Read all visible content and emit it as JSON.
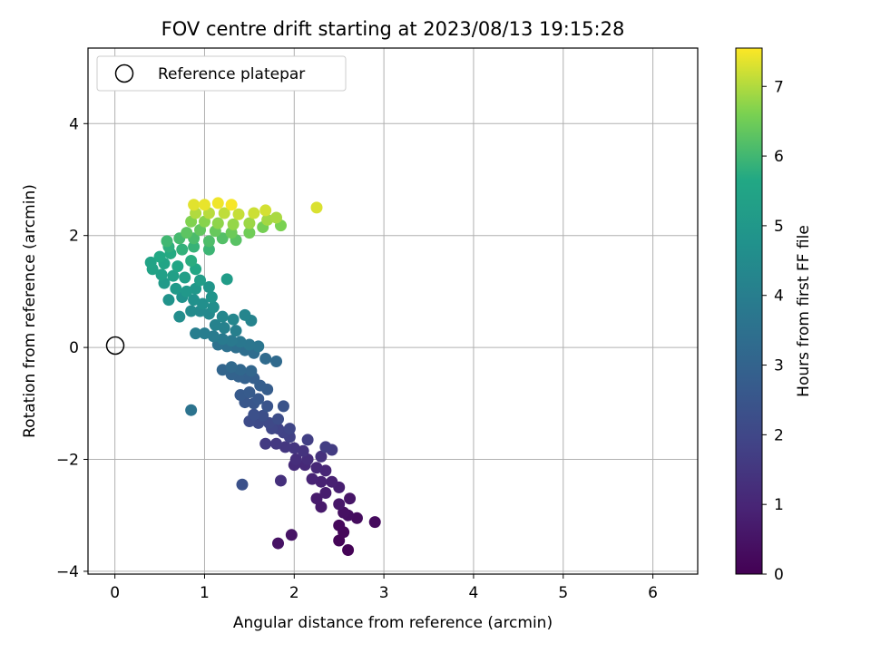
{
  "chart_data": {
    "type": "scatter",
    "title": "FOV centre drift starting at 2023/08/13 19:15:28",
    "xlabel": "Angular distance from reference (arcmin)",
    "ylabel": "Rotation from reference (arcmin)",
    "xlim": [
      -0.3,
      6.5
    ],
    "ylim": [
      -4.05,
      5.35
    ],
    "x_ticks": [
      0,
      1,
      2,
      3,
      4,
      5,
      6
    ],
    "y_ticks": [
      -4,
      -2,
      0,
      2,
      4
    ],
    "grid": true,
    "legend": {
      "placement": "upper-left",
      "entries": [
        "Reference platepar"
      ]
    },
    "reference_point": {
      "x": 0,
      "y": 0
    },
    "colorbar": {
      "label": "Hours from first FF file",
      "colormap": "viridis",
      "range": [
        0,
        7.55
      ],
      "ticks": [
        0,
        1,
        2,
        3,
        4,
        5,
        6,
        7
      ]
    },
    "series": [
      {
        "color_by": "hours",
        "points": [
          [
            2.6,
            -3.62,
            0.05
          ],
          [
            2.5,
            -3.45,
            0.1
          ],
          [
            2.55,
            -3.3,
            0.15
          ],
          [
            2.5,
            -3.18,
            0.2
          ],
          [
            2.9,
            -3.12,
            0.25
          ],
          [
            2.7,
            -3.05,
            0.3
          ],
          [
            2.6,
            -3.0,
            0.35
          ],
          [
            2.55,
            -2.95,
            0.4
          ],
          [
            1.82,
            -3.5,
            0.45
          ],
          [
            1.97,
            -3.35,
            0.5
          ],
          [
            2.62,
            -2.7,
            0.55
          ],
          [
            2.5,
            -2.8,
            0.6
          ],
          [
            2.3,
            -2.85,
            0.65
          ],
          [
            2.25,
            -2.7,
            0.7
          ],
          [
            2.35,
            -2.6,
            0.75
          ],
          [
            2.5,
            -2.5,
            0.8
          ],
          [
            2.42,
            -2.4,
            0.85
          ],
          [
            2.3,
            -2.4,
            0.9
          ],
          [
            2.2,
            -2.35,
            0.95
          ],
          [
            2.35,
            -2.2,
            1.0
          ],
          [
            2.25,
            -2.15,
            1.05
          ],
          [
            2.12,
            -2.1,
            1.1
          ],
          [
            2.0,
            -2.1,
            1.15
          ],
          [
            2.15,
            -2.0,
            1.2
          ],
          [
            2.02,
            -2.0,
            1.25
          ],
          [
            1.85,
            -2.38,
            1.3
          ],
          [
            2.3,
            -1.95,
            1.35
          ],
          [
            2.1,
            -1.85,
            1.4
          ],
          [
            2.0,
            -1.8,
            1.45
          ],
          [
            1.9,
            -1.78,
            1.5
          ],
          [
            1.8,
            -1.72,
            1.55
          ],
          [
            1.68,
            -1.72,
            1.6
          ],
          [
            2.42,
            -1.83,
            1.65
          ],
          [
            2.35,
            -1.78,
            1.7
          ],
          [
            2.15,
            -1.65,
            1.75
          ],
          [
            1.95,
            -1.6,
            1.8
          ],
          [
            1.88,
            -1.52,
            1.85
          ],
          [
            1.82,
            -1.45,
            1.9
          ],
          [
            1.95,
            -1.45,
            1.95
          ],
          [
            1.75,
            -1.45,
            2.0
          ],
          [
            1.72,
            -1.35,
            2.05
          ],
          [
            1.6,
            -1.35,
            2.1
          ],
          [
            1.5,
            -1.32,
            2.15
          ],
          [
            1.82,
            -1.28,
            2.2
          ],
          [
            1.65,
            -1.22,
            2.25
          ],
          [
            1.55,
            -1.2,
            2.3
          ],
          [
            1.42,
            -2.45,
            2.35
          ],
          [
            1.88,
            -1.05,
            2.4
          ],
          [
            1.7,
            -1.05,
            2.45
          ],
          [
            1.55,
            -1.0,
            2.5
          ],
          [
            1.45,
            -0.98,
            2.55
          ],
          [
            1.6,
            -0.92,
            2.6
          ],
          [
            1.4,
            -0.85,
            2.65
          ],
          [
            1.5,
            -0.8,
            2.7
          ],
          [
            1.7,
            -0.75,
            2.75
          ],
          [
            1.62,
            -0.68,
            2.8
          ],
          [
            1.55,
            -0.55,
            2.85
          ],
          [
            1.45,
            -0.55,
            2.9
          ],
          [
            1.38,
            -0.52,
            2.95
          ],
          [
            1.3,
            -0.48,
            3.0
          ],
          [
            1.2,
            -0.4,
            3.05
          ],
          [
            1.52,
            -0.42,
            3.1
          ],
          [
            1.4,
            -0.4,
            3.15
          ],
          [
            1.3,
            -0.35,
            3.2
          ],
          [
            1.8,
            -0.25,
            3.25
          ],
          [
            1.68,
            -0.2,
            3.3
          ],
          [
            1.55,
            -0.1,
            3.35
          ],
          [
            1.45,
            -0.05,
            3.4
          ],
          [
            1.35,
            0.0,
            3.45
          ],
          [
            1.25,
            0.02,
            3.5
          ],
          [
            1.15,
            0.05,
            3.55
          ],
          [
            0.85,
            -1.12,
            3.6
          ],
          [
            1.6,
            0.02,
            3.65
          ],
          [
            1.5,
            0.05,
            3.7
          ],
          [
            1.4,
            0.1,
            3.75
          ],
          [
            1.3,
            0.12,
            3.8
          ],
          [
            1.2,
            0.15,
            3.85
          ],
          [
            1.1,
            0.2,
            3.9
          ],
          [
            1.0,
            0.25,
            3.95
          ],
          [
            0.9,
            0.25,
            4.0
          ],
          [
            1.35,
            0.3,
            4.05
          ],
          [
            1.22,
            0.35,
            4.1
          ],
          [
            1.12,
            0.4,
            4.15
          ],
          [
            1.52,
            0.48,
            4.2
          ],
          [
            1.45,
            0.58,
            4.25
          ],
          [
            1.32,
            0.5,
            4.3
          ],
          [
            1.2,
            0.55,
            4.35
          ],
          [
            1.05,
            0.6,
            4.4
          ],
          [
            0.95,
            0.65,
            4.45
          ],
          [
            0.85,
            0.65,
            4.5
          ],
          [
            0.72,
            0.55,
            4.55
          ],
          [
            1.1,
            0.72,
            4.6
          ],
          [
            0.98,
            0.78,
            4.65
          ],
          [
            0.88,
            0.85,
            4.7
          ],
          [
            0.75,
            0.9,
            4.75
          ],
          [
            0.6,
            0.85,
            4.8
          ],
          [
            1.08,
            0.9,
            4.85
          ],
          [
            1.05,
            1.08,
            4.9
          ],
          [
            0.9,
            1.05,
            4.95
          ],
          [
            0.8,
            1.0,
            5.0
          ],
          [
            0.68,
            1.05,
            5.05
          ],
          [
            0.55,
            1.15,
            5.1
          ],
          [
            1.25,
            1.22,
            5.15
          ],
          [
            0.95,
            1.2,
            5.2
          ],
          [
            0.78,
            1.25,
            5.25
          ],
          [
            0.65,
            1.28,
            5.3
          ],
          [
            0.52,
            1.3,
            5.35
          ],
          [
            0.42,
            1.4,
            5.4
          ],
          [
            0.4,
            1.52,
            5.45
          ],
          [
            0.55,
            1.5,
            5.5
          ],
          [
            0.7,
            1.45,
            5.55
          ],
          [
            0.9,
            1.4,
            5.6
          ],
          [
            0.5,
            1.62,
            5.65
          ],
          [
            0.62,
            1.68,
            5.7
          ],
          [
            0.85,
            1.55,
            5.75
          ],
          [
            0.6,
            1.8,
            5.8
          ],
          [
            0.75,
            1.75,
            5.85
          ],
          [
            0.88,
            1.8,
            5.9
          ],
          [
            1.05,
            1.75,
            5.95
          ],
          [
            0.58,
            1.9,
            6.0
          ],
          [
            0.72,
            1.95,
            6.05
          ],
          [
            0.88,
            1.95,
            6.1
          ],
          [
            1.05,
            1.9,
            6.15
          ],
          [
            1.2,
            1.95,
            6.2
          ],
          [
            1.35,
            1.92,
            6.25
          ],
          [
            0.8,
            2.05,
            6.3
          ],
          [
            0.95,
            2.1,
            6.35
          ],
          [
            1.12,
            2.08,
            6.4
          ],
          [
            1.3,
            2.05,
            6.45
          ],
          [
            1.5,
            2.05,
            6.5
          ],
          [
            1.65,
            2.15,
            6.55
          ],
          [
            1.85,
            2.18,
            6.6
          ],
          [
            0.85,
            2.25,
            6.65
          ],
          [
            1.0,
            2.25,
            6.7
          ],
          [
            1.15,
            2.22,
            6.75
          ],
          [
            1.32,
            2.2,
            6.8
          ],
          [
            1.5,
            2.22,
            6.85
          ],
          [
            1.7,
            2.28,
            6.9
          ],
          [
            1.8,
            2.32,
            6.95
          ],
          [
            0.9,
            2.4,
            7.0
          ],
          [
            1.05,
            2.4,
            7.05
          ],
          [
            1.22,
            2.4,
            7.1
          ],
          [
            1.38,
            2.38,
            7.15
          ],
          [
            1.55,
            2.4,
            7.2
          ],
          [
            1.68,
            2.45,
            7.25
          ],
          [
            2.25,
            2.5,
            7.3
          ],
          [
            0.88,
            2.55,
            7.35
          ],
          [
            1.0,
            2.55,
            7.4
          ],
          [
            1.15,
            2.58,
            7.45
          ],
          [
            1.3,
            2.55,
            7.5
          ]
        ]
      }
    ]
  }
}
